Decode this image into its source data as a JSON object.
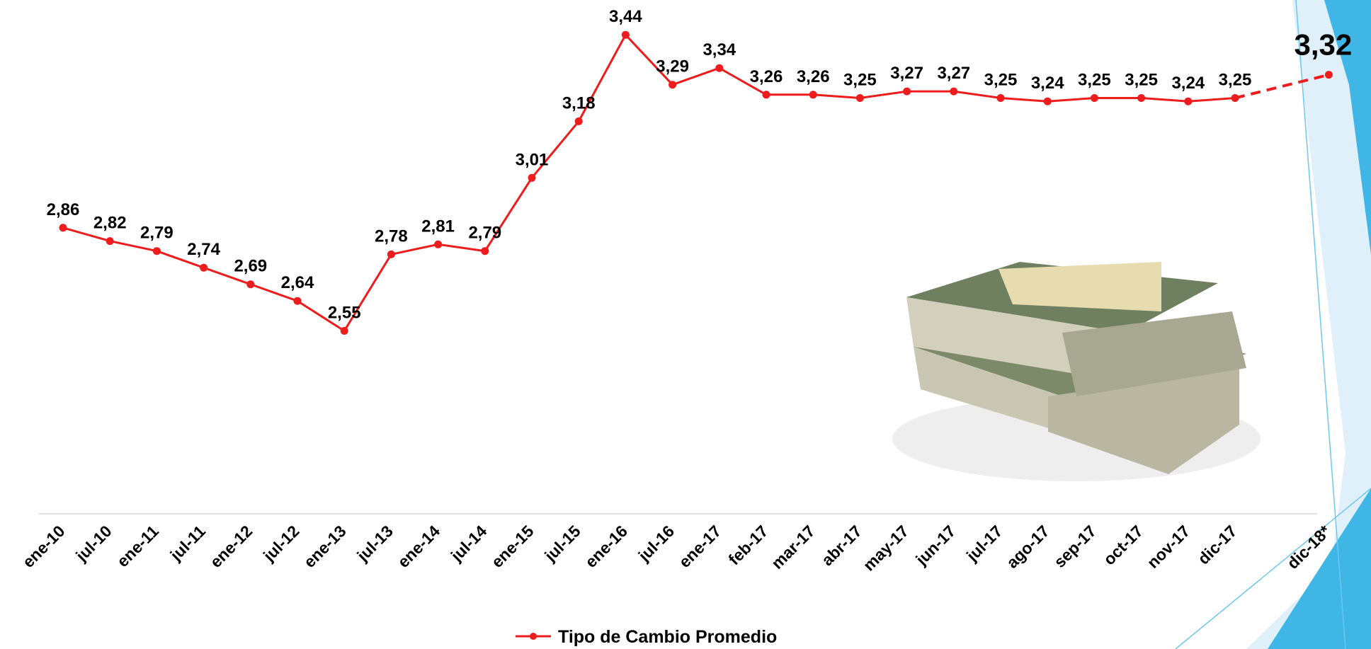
{
  "chart_data": {
    "type": "line",
    "categories": [
      "ene-10",
      "jul-10",
      "ene-11",
      "jul-11",
      "ene-12",
      "jul-12",
      "ene-13",
      "jul-13",
      "ene-14",
      "jul-14",
      "ene-15",
      "jul-15",
      "ene-16",
      "jul-16",
      "ene-17",
      "feb-17",
      "mar-17",
      "abr-17",
      "may-17",
      "jun-17",
      "jul-17",
      "ago-17",
      "sep-17",
      "oct-17",
      "nov-17",
      "dic-17",
      null,
      "dic-18*"
    ],
    "series": [
      {
        "name": "Tipo de Cambio Promedio",
        "color": "#ee1c1c",
        "values": [
          2.86,
          2.82,
          2.79,
          2.74,
          2.69,
          2.64,
          2.55,
          2.78,
          2.81,
          2.79,
          3.01,
          3.18,
          3.44,
          3.29,
          3.34,
          3.26,
          3.26,
          3.25,
          3.27,
          3.27,
          3.25,
          3.24,
          3.25,
          3.25,
          3.24,
          3.25,
          null,
          3.32
        ],
        "value_labels": [
          "2,86",
          "2,82",
          "2,79",
          "2,74",
          "2,69",
          "2,64",
          "2,55",
          "2,78",
          "2,81",
          "2,79",
          "3,01",
          "3,18",
          "3,44",
          "3,29",
          "3,34",
          "3,26",
          "3,26",
          "3,25",
          "3,27",
          "3,27",
          "3,25",
          "3,24",
          "3,25",
          "3,25",
          "3,24",
          "3,25",
          null,
          "3,32"
        ]
      }
    ],
    "ylim": [
      2,
      3.5
    ],
    "gap_style": "dashed",
    "legend": "bottom"
  }
}
